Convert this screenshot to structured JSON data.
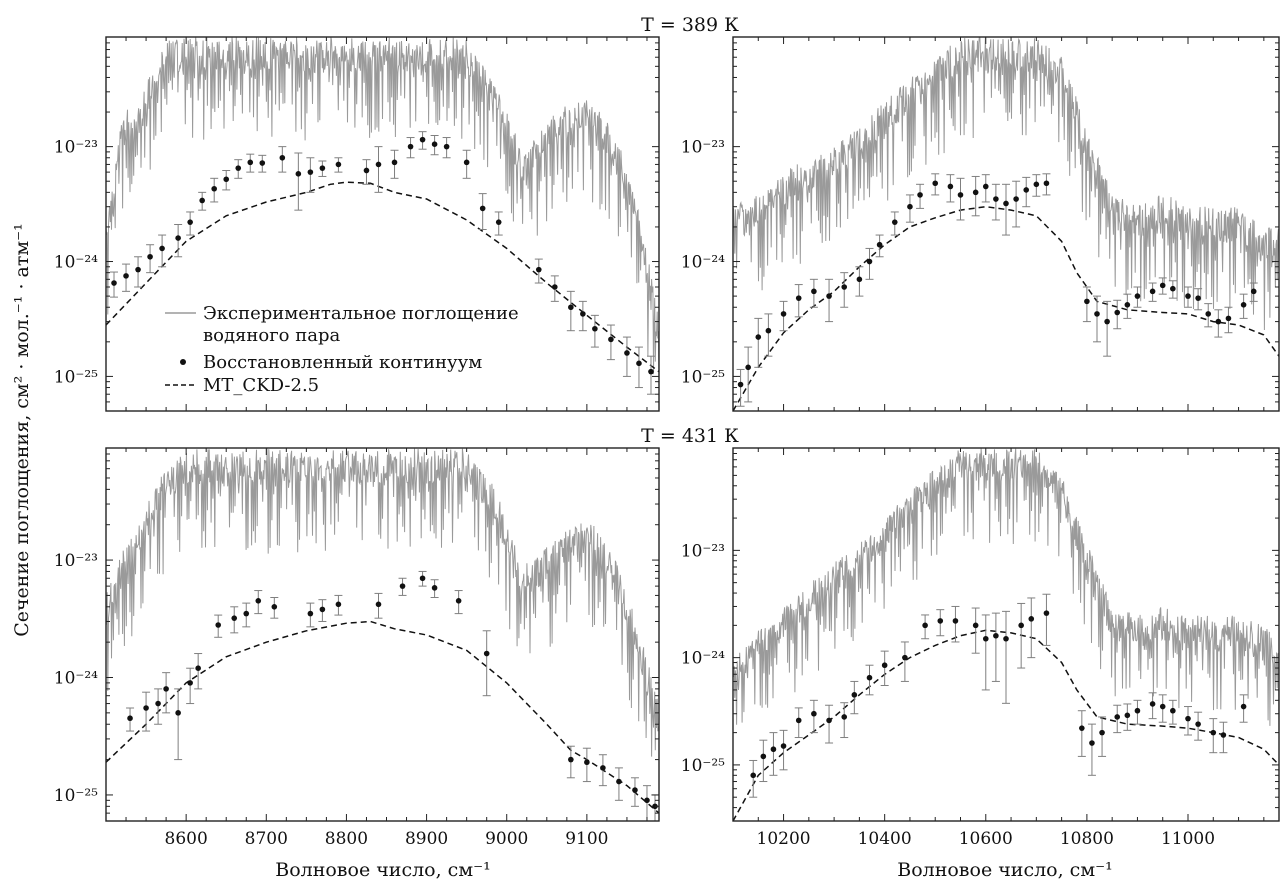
{
  "figure": {
    "ylabel": "Сечение поглощения, см² · мол.⁻¹ · атм⁻¹",
    "xlabel_left": "Волновое число, см⁻¹",
    "xlabel_right": "Волновое число, см⁻¹",
    "title_top": "T = 389 К",
    "title_bottom": "T = 431 К",
    "legend": {
      "exp_line1": "Экспериментальное поглощение",
      "exp_line2": "водяного пара",
      "continuum": "Восстановленный континуум",
      "ckd": "MT_CKD-2.5"
    },
    "colors": {
      "experiment": "#9a9a9a",
      "continuum": "#111111",
      "ckd": "#111111",
      "errorbar": "#7f7f7f"
    }
  },
  "chart_data": [
    {
      "panel": "top-left",
      "type": "line",
      "title": "T = 389 К",
      "xlim": [
        8500,
        9190
      ],
      "ylog": true,
      "ylim": [
        5e-26,
        9e-23
      ],
      "xticks": [
        8600,
        8700,
        8800,
        8900,
        9000,
        9100
      ],
      "yticks": [
        "10⁻²³",
        "10⁻²⁴",
        "10⁻²⁵"
      ],
      "ytick_values": [
        1e-23,
        1e-24,
        1e-25
      ],
      "series": [
        {
          "name": "MT_CKD-2.5",
          "style": "dashed",
          "x": [
            8500,
            8550,
            8600,
            8650,
            8700,
            8750,
            8780,
            8800,
            8830,
            8860,
            8900,
            8950,
            9000,
            9050,
            9100,
            9150,
            9190
          ],
          "y": [
            2.8e-25,
            6.5e-25,
            1.5e-24,
            2.5e-24,
            3.3e-24,
            4e-24,
            4.7e-24,
            4.9e-24,
            4.8e-24,
            4e-24,
            3.5e-24,
            2.3e-24,
            1.3e-24,
            6.5e-25,
            3.4e-25,
            1.8e-25,
            1.1e-25
          ]
        },
        {
          "name": "Восстановленный континуум",
          "style": "markers",
          "x": [
            8510,
            8525,
            8540,
            8555,
            8570,
            8590,
            8605,
            8620,
            8635,
            8650,
            8665,
            8680,
            8695,
            8720,
            8740,
            8755,
            8770,
            8790,
            8825,
            8840,
            8860,
            8880,
            8895,
            8910,
            8925,
            8950,
            8970,
            8990,
            9040,
            9060,
            9080,
            9095,
            9110,
            9130,
            9150,
            9165,
            9180
          ],
          "y": [
            6.5e-25,
            7.5e-25,
            8.5e-25,
            1.1e-24,
            1.3e-24,
            1.6e-24,
            2.2e-24,
            3.4e-24,
            4.3e-24,
            5.2e-24,
            6.5e-24,
            7.3e-24,
            7.2e-24,
            8e-24,
            5.8e-24,
            6e-24,
            6.5e-24,
            7e-24,
            6.2e-24,
            7e-24,
            7.3e-24,
            1e-23,
            1.15e-23,
            1.05e-23,
            1e-23,
            7.3e-24,
            2.9e-24,
            2.2e-24,
            8.5e-25,
            6e-25,
            4e-25,
            3.5e-25,
            2.6e-25,
            2.1e-25,
            1.6e-25,
            1.3e-25,
            1.1e-25
          ],
          "err": [
            1.6e-25,
            2e-25,
            2.5e-25,
            3e-25,
            4e-25,
            5e-25,
            5e-25,
            6e-25,
            1e-24,
            1e-24,
            1.2e-24,
            1.3e-24,
            1.2e-24,
            2e-24,
            3e-24,
            2e-24,
            1e-24,
            1e-24,
            1.5e-24,
            3e-24,
            2e-24,
            2e-24,
            2e-24,
            2e-24,
            2e-24,
            2e-24,
            1e-24,
            5e-25,
            2e-25,
            1.5e-25,
            1.5e-25,
            1e-25,
            8e-26,
            7e-26,
            6e-26,
            5e-26,
            4e-26
          ]
        },
        {
          "name": "Экспериментальное поглощение водяного пара",
          "style": "spectrum",
          "x": [
            8500,
            8520,
            8540,
            8560,
            8580,
            8600,
            8630,
            8660,
            8700,
            8750,
            8800,
            8850,
            8900,
            8950,
            8990,
            9020,
            9060,
            9100,
            9140,
            9170,
            9190
          ],
          "y": [
            2e-24,
            2e-23,
            2.5e-23,
            5e-23,
            9e-23,
            9e-23,
            9e-23,
            9e-23,
            9e-23,
            9e-23,
            9e-23,
            9e-23,
            9e-23,
            9e-23,
            3e-23,
            9e-24,
            2e-23,
            3e-23,
            1.2e-23,
            2e-24,
            3e-25
          ]
        }
      ]
    },
    {
      "panel": "top-right",
      "type": "line",
      "title": "T = 389 К",
      "xlim": [
        10100,
        11180
      ],
      "ylog": true,
      "ylim": [
        5e-26,
        9e-23
      ],
      "xticks": [
        10200,
        10400,
        10600,
        10800,
        11000
      ],
      "yticks": [
        "10⁻²³",
        "10⁻²⁴",
        "10⁻²⁵"
      ],
      "ytick_values": [
        1e-23,
        1e-24,
        1e-25
      ],
      "series": [
        {
          "name": "MT_CKD-2.5",
          "style": "dashed",
          "x": [
            10100,
            10150,
            10200,
            10250,
            10300,
            10350,
            10400,
            10450,
            10500,
            10550,
            10600,
            10650,
            10700,
            10750,
            10780,
            10820,
            10880,
            10950,
            11000,
            11050,
            11100,
            11150,
            11180
          ],
          "y": [
            5e-26,
            1.2e-25,
            2.4e-25,
            3.8e-25,
            5.5e-25,
            9e-25,
            1.4e-24,
            2e-24,
            2.4e-24,
            2.8e-24,
            3e-24,
            2.8e-24,
            2.5e-24,
            1.5e-24,
            8e-25,
            4.5e-25,
            3.8e-25,
            3.6e-25,
            3.5e-25,
            3e-25,
            2.8e-25,
            2.3e-25,
            1.5e-25
          ]
        },
        {
          "name": "Восстановленный континуум",
          "style": "markers",
          "x": [
            10115,
            10130,
            10150,
            10170,
            10200,
            10230,
            10260,
            10290,
            10320,
            10350,
            10370,
            10390,
            10420,
            10450,
            10470,
            10500,
            10530,
            10550,
            10580,
            10600,
            10620,
            10640,
            10660,
            10680,
            10700,
            10720,
            10800,
            10820,
            10840,
            10860,
            10880,
            10900,
            10930,
            10950,
            10970,
            11000,
            11020,
            11040,
            11060,
            11080,
            11110,
            11130
          ],
          "y": [
            8.5e-26,
            1.2e-25,
            2.2e-25,
            2.5e-25,
            3.5e-25,
            4.8e-25,
            5.5e-25,
            5e-25,
            6e-25,
            7e-25,
            1e-24,
            1.4e-24,
            2.2e-24,
            3e-24,
            3.8e-24,
            4.8e-24,
            4.5e-24,
            3.8e-24,
            4e-24,
            4.5e-24,
            3.5e-24,
            3.2e-24,
            3.5e-24,
            4.2e-24,
            4.7e-24,
            4.8e-24,
            4.5e-25,
            3.5e-25,
            3e-25,
            3.6e-25,
            4.2e-25,
            5e-25,
            5.5e-25,
            6.2e-25,
            5.8e-25,
            5e-25,
            4.8e-25,
            3.5e-25,
            3e-25,
            3.2e-25,
            4.2e-25,
            5.5e-25
          ],
          "err": [
            3e-26,
            6e-26,
            1e-25,
            1e-25,
            1e-25,
            1.5e-25,
            1.5e-25,
            2e-25,
            2e-25,
            2e-25,
            3e-25,
            3e-25,
            5e-25,
            8e-25,
            9e-25,
            1e-24,
            1.2e-24,
            1.5e-24,
            1.5e-24,
            1.2e-24,
            1.2e-24,
            1.5e-24,
            1.5e-24,
            1.2e-24,
            1e-24,
            1e-24,
            1.5e-25,
            1.5e-25,
            1.5e-25,
            1e-25,
            1e-25,
            1e-25,
            1e-25,
            1e-25,
            1e-25,
            1e-25,
            1e-25,
            8e-26,
            8e-26,
            8e-26,
            1e-25,
            1e-25
          ]
        },
        {
          "name": "Экспериментальное поглощение водяного пара",
          "style": "spectrum",
          "x": [
            10100,
            10150,
            10200,
            10250,
            10300,
            10350,
            10400,
            10450,
            10500,
            10550,
            10600,
            10650,
            10700,
            10750,
            10800,
            10850,
            10900,
            10950,
            11000,
            11050,
            11100,
            11150,
            11180
          ],
          "y": [
            3e-24,
            4e-24,
            6e-24,
            8e-24,
            1e-23,
            1.5e-23,
            2.5e-23,
            4e-23,
            6e-23,
            9e-23,
            9e-23,
            9e-23,
            9e-23,
            6e-23,
            1.5e-23,
            4e-24,
            3e-24,
            4e-24,
            3e-24,
            3e-24,
            3e-24,
            2e-24,
            2e-24
          ]
        }
      ]
    },
    {
      "panel": "bottom-left",
      "type": "line",
      "title": "T = 431 К",
      "xlim": [
        8500,
        9190
      ],
      "ylog": true,
      "ylim": [
        6e-26,
        9e-23
      ],
      "xticks": [
        8600,
        8700,
        8800,
        8900,
        9000,
        9100
      ],
      "yticks": [
        "10⁻²³",
        "10⁻²⁴",
        "10⁻²⁵"
      ],
      "ytick_values": [
        1e-23,
        1e-24,
        1e-25
      ],
      "series": [
        {
          "name": "MT_CKD-2.5",
          "style": "dashed",
          "x": [
            8500,
            8550,
            8600,
            8650,
            8700,
            8750,
            8800,
            8830,
            8860,
            8900,
            8950,
            9000,
            9050,
            9080,
            9100,
            9150,
            9190
          ],
          "y": [
            1.9e-25,
            4e-25,
            9e-25,
            1.5e-24,
            2e-24,
            2.5e-24,
            2.9e-24,
            3e-24,
            2.6e-24,
            2.3e-24,
            1.7e-24,
            9e-25,
            4e-25,
            2.4e-25,
            2e-25,
            1.2e-25,
            7e-26
          ]
        },
        {
          "name": "Восстановленный континуум",
          "style": "markers",
          "x": [
            8530,
            8550,
            8565,
            8575,
            8590,
            8605,
            8615,
            8640,
            8660,
            8675,
            8690,
            8710,
            8755,
            8770,
            8790,
            8840,
            8870,
            8895,
            8910,
            8940,
            8975,
            9080,
            9100,
            9120,
            9140,
            9160,
            9175,
            9185
          ],
          "y": [
            4.5e-25,
            5.5e-25,
            6e-25,
            8e-25,
            5e-25,
            9e-25,
            1.2e-24,
            2.8e-24,
            3.2e-24,
            3.5e-24,
            4.5e-24,
            4e-24,
            3.5e-24,
            3.8e-24,
            4.2e-24,
            4.2e-24,
            6e-24,
            7e-24,
            5.8e-24,
            4.5e-24,
            1.6e-24,
            2e-25,
            1.9e-25,
            1.7e-25,
            1.3e-25,
            1.1e-25,
            9e-26,
            8e-26
          ],
          "err": [
            1e-25,
            2e-25,
            2e-25,
            3e-25,
            3e-25,
            3e-25,
            4e-25,
            6e-25,
            8e-25,
            8e-25,
            1e-24,
            8e-25,
            8e-25,
            8e-25,
            8e-25,
            1e-24,
            1e-24,
            1e-24,
            1e-24,
            1e-24,
            9e-25,
            6e-26,
            6e-26,
            5e-26,
            4e-26,
            3e-26,
            3e-26,
            2e-26
          ]
        },
        {
          "name": "Экспериментальное поглощение водяного пара",
          "style": "spectrum",
          "x": [
            8500,
            8520,
            8540,
            8560,
            8580,
            8600,
            8630,
            8660,
            8700,
            8750,
            8800,
            8850,
            8900,
            8950,
            8990,
            9020,
            9060,
            9100,
            9140,
            9170,
            9190
          ],
          "y": [
            5e-24,
            1.2e-23,
            2e-23,
            4e-23,
            7e-23,
            9e-23,
            9e-23,
            9e-23,
            9e-23,
            9e-23,
            9e-23,
            9e-23,
            9e-23,
            9e-23,
            4e-23,
            9e-24,
            1.5e-23,
            2.5e-23,
            9e-24,
            2e-24,
            6e-25
          ]
        }
      ]
    },
    {
      "panel": "bottom-right",
      "type": "line",
      "title": "T = 431 К",
      "xlim": [
        10100,
        11180
      ],
      "ylog": true,
      "ylim": [
        3e-26,
        9e-23
      ],
      "xticks": [
        10200,
        10400,
        10600,
        10800,
        11000
      ],
      "yticks": [
        "10⁻²³",
        "10⁻²⁴",
        "10⁻²⁵"
      ],
      "ytick_values": [
        1e-23,
        1e-24,
        1e-25
      ],
      "series": [
        {
          "name": "MT_CKD-2.5",
          "style": "dashed",
          "x": [
            10100,
            10150,
            10200,
            10250,
            10300,
            10350,
            10400,
            10450,
            10500,
            10550,
            10600,
            10650,
            10700,
            10750,
            10780,
            10820,
            10880,
            10950,
            11000,
            11050,
            11100,
            11150,
            11180
          ],
          "y": [
            3e-26,
            8e-26,
            1.3e-25,
            1.9e-25,
            2.8e-25,
            4.5e-25,
            7e-25,
            1e-24,
            1.3e-24,
            1.6e-24,
            1.8e-24,
            1.7e-24,
            1.5e-24,
            9e-25,
            5e-25,
            2.8e-25,
            2.4e-25,
            2.3e-25,
            2.2e-25,
            2e-25,
            1.8e-25,
            1.4e-25,
            1e-25
          ]
        },
        {
          "name": "Восстановленный континуум",
          "style": "markers",
          "x": [
            10140,
            10160,
            10180,
            10200,
            10230,
            10260,
            10290,
            10320,
            10340,
            10370,
            10400,
            10440,
            10480,
            10510,
            10540,
            10580,
            10600,
            10620,
            10640,
            10670,
            10690,
            10720,
            10790,
            10810,
            10830,
            10860,
            10880,
            10900,
            10930,
            10950,
            10970,
            11000,
            11020,
            11050,
            11070,
            11110
          ],
          "y": [
            8e-26,
            1.2e-25,
            1.4e-25,
            1.5e-25,
            2.6e-25,
            3e-25,
            2.6e-25,
            2.8e-25,
            4.5e-25,
            6.5e-25,
            8.5e-25,
            1e-24,
            2e-24,
            2.2e-24,
            2.2e-24,
            2e-24,
            1.5e-24,
            1.6e-24,
            1.5e-24,
            2e-24,
            2.3e-24,
            2.6e-24,
            2.2e-25,
            1.6e-25,
            2e-25,
            2.8e-25,
            2.9e-25,
            3.2e-25,
            3.7e-25,
            3.5e-25,
            3.2e-25,
            2.7e-25,
            2.4e-25,
            2e-25,
            1.9e-25,
            3.5e-25
          ],
          "err": [
            3e-26,
            5e-26,
            6e-26,
            6e-26,
            8e-26,
            1e-25,
            1e-25,
            1e-25,
            1.5e-25,
            2e-25,
            3e-25,
            4e-25,
            5e-25,
            6e-25,
            8e-25,
            9e-25,
            1e-24,
            1e-24,
            1.2e-24,
            1.2e-24,
            1.3e-24,
            1.3e-24,
            1e-25,
            8e-26,
            8e-26,
            8e-26,
            8e-26,
            8e-26,
            1e-25,
            1e-25,
            8e-26,
            8e-26,
            7e-26,
            7e-26,
            6e-26,
            1e-25
          ]
        },
        {
          "name": "Экспериментальное поглощение водяного пара",
          "style": "spectrum",
          "x": [
            10100,
            10150,
            10200,
            10250,
            10300,
            10350,
            10400,
            10450,
            10500,
            10550,
            10600,
            10650,
            10700,
            10750,
            10800,
            10850,
            10900,
            10950,
            11000,
            11050,
            11100,
            11150,
            11180
          ],
          "y": [
            1e-24,
            2e-24,
            3e-24,
            5e-24,
            8e-24,
            1.2e-23,
            2e-23,
            3.5e-23,
            6e-23,
            9e-23,
            9e-23,
            9e-23,
            9e-23,
            5e-23,
            1.2e-23,
            3e-24,
            2.5e-24,
            3e-24,
            2.5e-24,
            2.5e-24,
            2.5e-24,
            2e-24,
            1.5e-24
          ]
        }
      ]
    }
  ]
}
